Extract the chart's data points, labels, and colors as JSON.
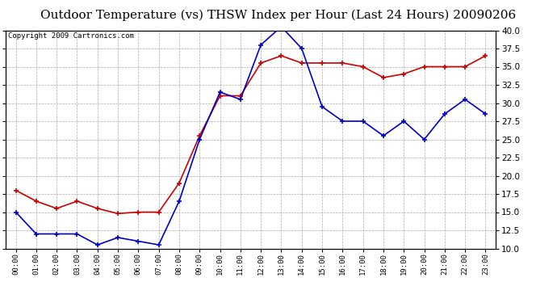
{
  "title": "Outdoor Temperature (vs) THSW Index per Hour (Last 24 Hours) 20090206",
  "copyright": "Copyright 2009 Cartronics.com",
  "hours": [
    "00:00",
    "01:00",
    "02:00",
    "03:00",
    "04:00",
    "05:00",
    "06:00",
    "07:00",
    "08:00",
    "09:00",
    "10:00",
    "11:00",
    "12:00",
    "13:00",
    "14:00",
    "15:00",
    "16:00",
    "17:00",
    "18:00",
    "19:00",
    "20:00",
    "21:00",
    "22:00",
    "23:00"
  ],
  "outdoor_temp": [
    18.0,
    16.5,
    15.5,
    16.5,
    15.5,
    14.8,
    15.0,
    15.0,
    19.0,
    25.5,
    31.0,
    31.0,
    35.5,
    36.5,
    35.5,
    35.5,
    35.5,
    35.0,
    33.5,
    34.0,
    35.0,
    35.0,
    35.0,
    36.5
  ],
  "thsw_index": [
    15.0,
    12.0,
    12.0,
    12.0,
    10.5,
    11.5,
    11.0,
    10.5,
    16.5,
    25.0,
    31.5,
    30.5,
    38.0,
    40.5,
    37.5,
    29.5,
    27.5,
    27.5,
    25.5,
    27.5,
    25.0,
    28.5,
    30.5,
    28.5
  ],
  "ylim": [
    10.0,
    40.0
  ],
  "yticks": [
    10.0,
    12.5,
    15.0,
    17.5,
    20.0,
    22.5,
    25.0,
    27.5,
    30.0,
    32.5,
    35.0,
    37.5,
    40.0
  ],
  "temp_color": "#cc0000",
  "thsw_color": "#0000cc",
  "bg_color": "#ffffff",
  "plot_bg": "#ffffff",
  "grid_color": "#aaaaaa",
  "title_fontsize": 11,
  "copyright_fontsize": 6.5
}
